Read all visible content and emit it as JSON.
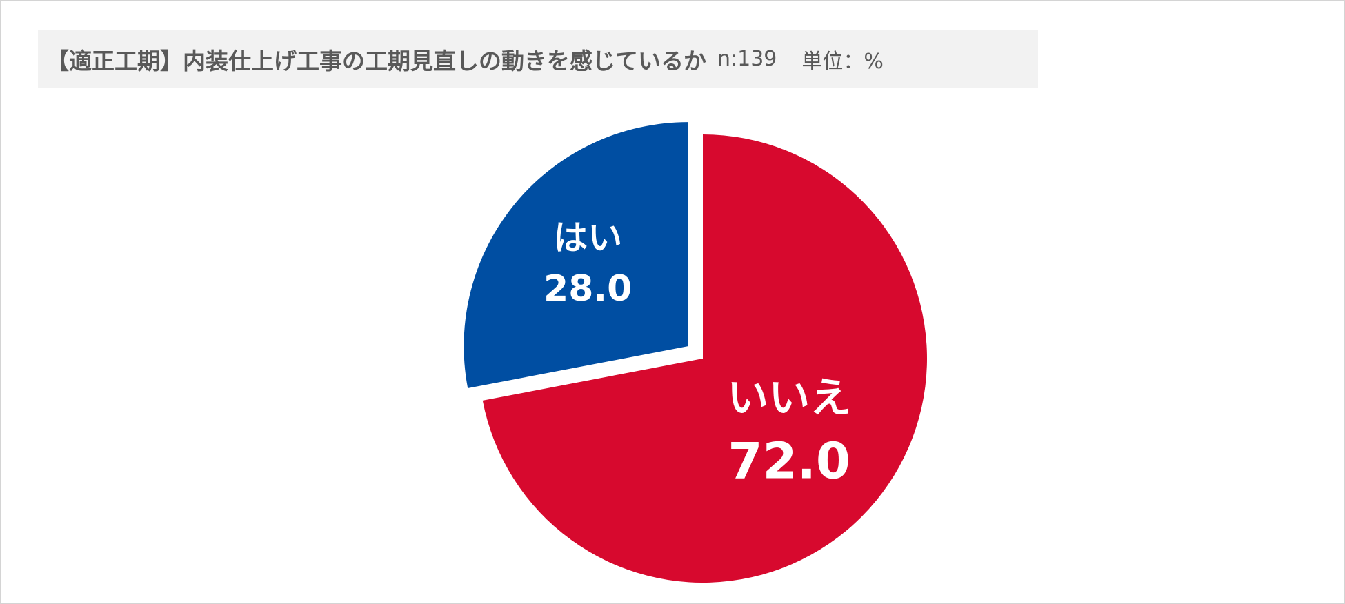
{
  "title": {
    "main": "【適正工期】内装仕上げ工事の工期見直しの動きを感じているか",
    "sample": "n:139",
    "unit": "単位：%"
  },
  "chart_data": {
    "type": "pie",
    "title": "【適正工期】内装仕上げ工事の工期見直しの動きを感じているか",
    "sample_size": 139,
    "unit": "%",
    "start_angle_deg": 0,
    "direction": "clockwise",
    "slices": [
      {
        "label": "いいえ",
        "value": 72.0,
        "value_label": "72.0",
        "color": "#d7092e",
        "exploded": false
      },
      {
        "label": "はい",
        "value": 28.0,
        "value_label": "28.0",
        "color": "#004ea2",
        "exploded": true
      }
    ]
  }
}
